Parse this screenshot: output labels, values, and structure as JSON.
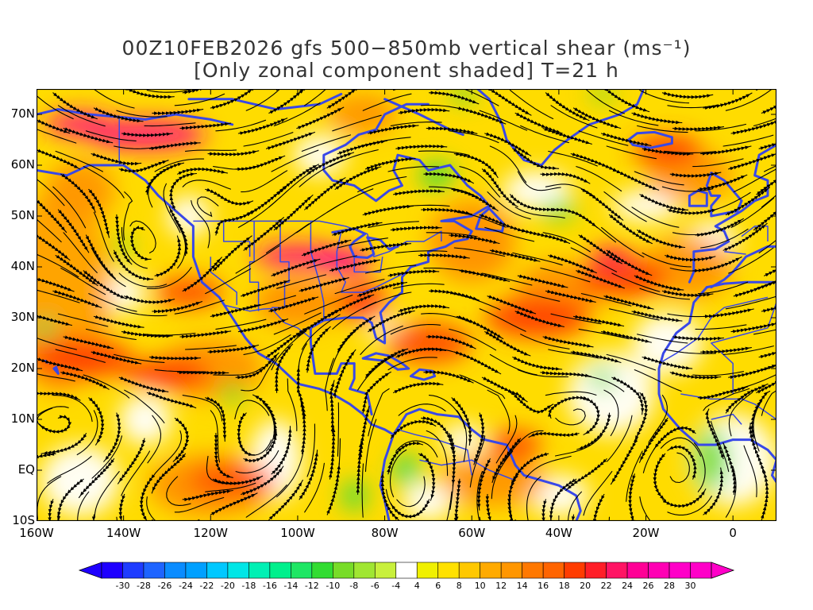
{
  "title": {
    "line1": "00Z10FEB2026 gfs 500−850mb vertical shear (ms⁻¹)",
    "line2": "[Only zonal component shaded] T=21 h"
  },
  "axes": {
    "x_ticks": [
      "160W",
      "140W",
      "120W",
      "100W",
      "80W",
      "60W",
      "40W",
      "20W",
      "0"
    ],
    "x_tick_lons": [
      -160,
      -140,
      -120,
      -100,
      -80,
      -60,
      -40,
      -20,
      0
    ],
    "y_ticks": [
      "70N",
      "60N",
      "50N",
      "40N",
      "30N",
      "20N",
      "10N",
      "EQ",
      "10S"
    ],
    "y_tick_lats": [
      70,
      60,
      50,
      40,
      30,
      20,
      10,
      0,
      -10
    ],
    "lon_range": [
      -160,
      10
    ],
    "lat_range": [
      -10,
      75
    ]
  },
  "colorbar": {
    "labels": [
      "-30",
      "-28",
      "-26",
      "-24",
      "-22",
      "-20",
      "-18",
      "-16",
      "-14",
      "-12",
      "-10",
      "-8",
      "-6",
      "-4",
      "4",
      "6",
      "8",
      "10",
      "12",
      "14",
      "16",
      "18",
      "20",
      "22",
      "24",
      "26",
      "28",
      "30"
    ],
    "colors": [
      "#1e00ff",
      "#1e3cff",
      "#1e64ff",
      "#0a8cff",
      "#00a0ff",
      "#00c8ff",
      "#00e6e6",
      "#00f0b4",
      "#00f08c",
      "#1ee664",
      "#32dc32",
      "#78dc28",
      "#a0e632",
      "#c8f03c",
      "#ffffff",
      "#f0f000",
      "#ffe100",
      "#ffc800",
      "#ffaa00",
      "#ff9600",
      "#ff7800",
      "#ff6400",
      "#ff3c00",
      "#ff1e28",
      "#ff1464",
      "#ff0096",
      "#ff00b4",
      "#ff00c8",
      "#ff00c8"
    ]
  },
  "colors": {
    "coastline": "#3848e8",
    "streamline": "#000000"
  }
}
